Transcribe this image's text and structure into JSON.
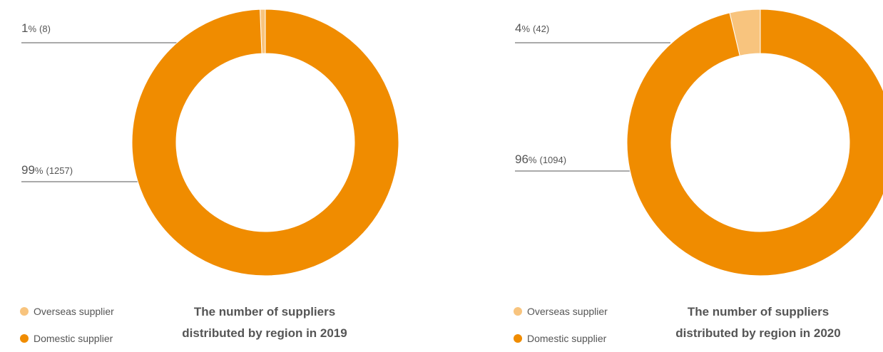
{
  "colors": {
    "domestic": "#F08C00",
    "overseas": "#F8C47E",
    "leader": "#555555"
  },
  "chart_data": [
    {
      "type": "pie",
      "title": "The number of suppliers distributed by region in 2019",
      "categories": [
        "Overseas supplier",
        "Domestic supplier"
      ],
      "values": [
        8,
        1257
      ],
      "percent_labels": [
        "1",
        "99"
      ],
      "count_labels": [
        "(8)",
        "(1257)"
      ],
      "legend": [
        "Overseas supplier",
        "Domestic supplier"
      ],
      "legend_position": "bottom-left"
    },
    {
      "type": "pie",
      "title": "The number of suppliers distributed by region in 2020",
      "categories": [
        "Overseas supplier",
        "Domestic supplier"
      ],
      "values": [
        42,
        1094
      ],
      "percent_labels": [
        "4",
        "96"
      ],
      "count_labels": [
        "(42)",
        "(1094)"
      ],
      "legend": [
        "Overseas supplier",
        "Domestic supplier"
      ],
      "legend_position": "bottom-left"
    }
  ],
  "ui": {
    "percent_sign": "%"
  }
}
